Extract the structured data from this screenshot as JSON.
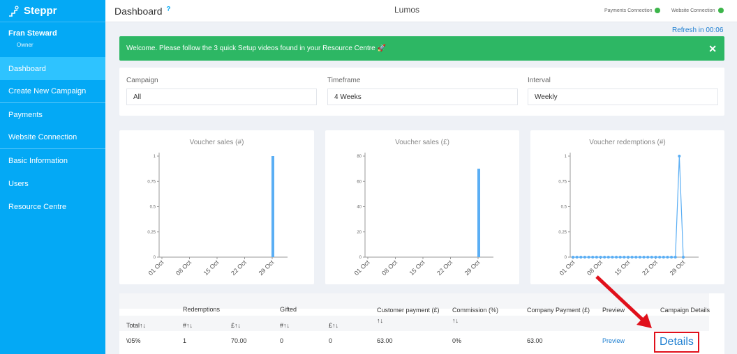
{
  "brand": {
    "name": "Steppr"
  },
  "user": {
    "name": "Fran Steward",
    "role": "Owner"
  },
  "sidebar": {
    "items": [
      {
        "label": "Dashboard"
      },
      {
        "label": "Create New Campaign"
      },
      {
        "label": "Payments"
      },
      {
        "label": "Website Connection"
      },
      {
        "label": "Basic Information"
      },
      {
        "label": "Users"
      },
      {
        "label": "Resource Centre"
      }
    ]
  },
  "header": {
    "title": "Dashboard",
    "help": "?",
    "center": "Lumos",
    "payments_status": "Payments Connection",
    "website_status": "Website Connection"
  },
  "refresh": "Refresh in 00:06",
  "alert": {
    "text": "Welcome. Please follow the 3 quick Setup videos found in your Resource Centre 🚀",
    "close": "✕"
  },
  "filters": {
    "campaign_label": "Campaign",
    "campaign_value": "All",
    "timeframe_label": "Timeframe",
    "timeframe_value": "4 Weeks",
    "interval_label": "Interval",
    "interval_value": "Weekly"
  },
  "colors": {
    "sidebar": "#04a9f5",
    "alert": "#2db764",
    "bar": "#5aaef4",
    "status_ok": "#3cb54a",
    "highlight": "#e0101b"
  },
  "chart_data": [
    {
      "type": "bar",
      "title": "Voucher sales (#)",
      "categories": [
        "01 Oct",
        "08 Oct",
        "15 Oct",
        "22 Oct",
        "29 Oct"
      ],
      "yticks": [
        "0",
        "0.25",
        "0.5",
        "0.75",
        "1"
      ],
      "ylim": [
        0,
        1
      ],
      "bar": {
        "x": "29 Oct",
        "value": 1
      }
    },
    {
      "type": "bar",
      "title": "Voucher sales (£)",
      "categories": [
        "01 Oct",
        "08 Oct",
        "15 Oct",
        "22 Oct",
        "29 Oct"
      ],
      "yticks": [
        "0",
        "20",
        "40",
        "60",
        "80"
      ],
      "ylim": [
        0,
        80
      ],
      "bar": {
        "x": "29 Oct",
        "value": 70
      }
    },
    {
      "type": "line",
      "title": "Voucher redemptions (#)",
      "categories": [
        "01 Oct",
        "08 Oct",
        "15 Oct",
        "22 Oct",
        "29 Oct"
      ],
      "yticks": [
        "0",
        "0.25",
        "0.5",
        "0.75",
        "1"
      ],
      "ylim": [
        0,
        1
      ],
      "peak": {
        "x": "29 Oct",
        "value": 1
      }
    }
  ],
  "table": {
    "group_headers": {
      "redemptions": "Redemptions",
      "gifted": "Gifted",
      "customer_payment": "Customer payment (£)",
      "commission": "Commission (%)",
      "company_payment": "Company Payment (£)",
      "preview": "Preview",
      "campaign_details": "Campaign Details"
    },
    "sub_headers": {
      "total": "Total↑↓",
      "red_num": "#↑↓",
      "red_val": "£↑↓",
      "gift_num": "#↑↓",
      "gift_val": "£↑↓",
      "cust_sort": "↑↓",
      "comm_sort": "↑↓"
    },
    "row": {
      "total": "\\05%",
      "red_num": "1",
      "red_val": "70.00",
      "gift_num": "0",
      "gift_val": "0",
      "customer_payment": "63.00",
      "commission": "0%",
      "company_payment": "63.00",
      "preview": "Preview",
      "details": "Details"
    }
  }
}
